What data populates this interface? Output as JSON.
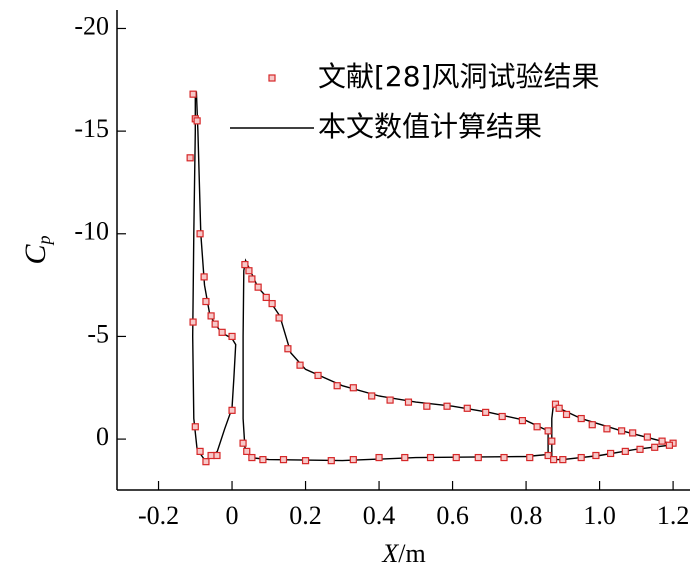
{
  "chart_data": {
    "type": "scatter",
    "x_label": "X/m",
    "y_label": "Cp",
    "xlim": [
      -0.313,
      1.246
    ],
    "ylim": [
      2.48,
      -20.9
    ],
    "xticks": [
      -0.2,
      0,
      0.2,
      0.4,
      0.6,
      0.8,
      {
        "value": 1,
        "label": "1.0"
      },
      1.2
    ],
    "yticks": [
      -20,
      -15,
      -10,
      -5,
      0
    ],
    "legend": "upper right",
    "series": [
      {
        "name": "文献[28]风洞试验结果",
        "type": "scatter",
        "color": "#d62728",
        "x": [
          -0.106,
          -0.1,
          -0.095,
          -0.114,
          -0.087,
          -0.076,
          -0.071,
          -0.057,
          -0.046,
          -0.027,
          0,
          -0.106,
          -0.1,
          -0.087,
          -0.071,
          -0.057,
          -0.041,
          0,
          0.035,
          0.046,
          0.054,
          0.071,
          0.093,
          0.109,
          0.128,
          0.152,
          0.185,
          0.234,
          0.286,
          0.33,
          0.38,
          0.43,
          0.48,
          0.53,
          0.585,
          0.64,
          0.69,
          0.735,
          0.79,
          0.83,
          0.86,
          0.87,
          0.03,
          0.04,
          0.054,
          0.084,
          0.14,
          0.2,
          0.27,
          0.33,
          0.4,
          0.47,
          0.54,
          0.61,
          0.67,
          0.74,
          0.81,
          0.86,
          0.88,
          0.89,
          0.91,
          0.95,
          0.98,
          1.02,
          1.06,
          1.09,
          1.13,
          1.17,
          1.2,
          0.875,
          0.9,
          0.95,
          0.99,
          1.03,
          1.07,
          1.11,
          1.15,
          1.19
        ],
        "values": [
          -16.8,
          -15.6,
          -15.5,
          -13.7,
          -10.0,
          -7.9,
          -6.7,
          -6.0,
          -5.6,
          -5.2,
          -5.0,
          -5.7,
          -0.6,
          0.6,
          1.1,
          0.8,
          0.8,
          -1.4,
          -8.5,
          -8.2,
          -7.8,
          -7.4,
          -6.9,
          -6.6,
          -5.9,
          -4.4,
          -3.6,
          -3.1,
          -2.6,
          -2.5,
          -2.1,
          -1.9,
          -1.8,
          -1.6,
          -1.6,
          -1.5,
          -1.3,
          -1.1,
          -0.9,
          -0.6,
          -0.4,
          0.1,
          0.2,
          0.6,
          0.9,
          1.0,
          1.0,
          1.05,
          1.05,
          1.0,
          0.9,
          0.9,
          0.9,
          0.9,
          0.9,
          0.9,
          0.9,
          0.8,
          -1.7,
          -1.5,
          -1.2,
          -1.0,
          -0.7,
          -0.5,
          -0.4,
          -0.3,
          -0.1,
          0.1,
          0.2,
          1.0,
          1.0,
          0.9,
          0.8,
          0.7,
          0.6,
          0.5,
          0.4,
          0.3
        ]
      },
      {
        "name": "本文数值计算结果",
        "type": "line",
        "color": "#000000",
        "x": [
          0,
          -0.03,
          -0.06,
          -0.075,
          -0.085,
          -0.093,
          -0.097,
          -0.1,
          -0.1,
          -0.104,
          -0.107,
          -0.104,
          -0.095,
          -0.075,
          -0.06,
          -0.04,
          -0.02,
          0,
          0.005,
          0.01,
          0,
          null,
          0.86,
          0.8,
          0.7,
          0.6,
          0.5,
          0.4,
          0.3,
          0.2,
          0.16,
          0.13,
          0.1,
          0.07,
          0.05,
          0.037,
          0.032,
          0.03,
          0.03,
          0.035,
          0.05,
          0.1,
          0.3,
          0.5,
          0.8,
          0.86,
          0.86,
          null,
          0.87,
          0.87,
          0.875,
          0.89,
          0.95,
          1.05,
          1.19,
          1.19,
          1.1,
          1.0,
          0.9,
          0.87
        ],
        "values": [
          -4.9,
          -5.2,
          -6.0,
          -7.5,
          -10,
          -15,
          -16.9,
          -16.9,
          -15,
          -10,
          -5,
          -1,
          0.5,
          1.0,
          0.9,
          0.6,
          -0.5,
          -1.5,
          -3,
          -4.6,
          -4.9,
          null,
          -0.4,
          -0.9,
          -1.3,
          -1.6,
          -1.8,
          -2.1,
          -2.6,
          -3.4,
          -4.2,
          -6,
          -6.8,
          -7.4,
          -8.2,
          -8.7,
          -8.2,
          -5,
          -1,
          0.4,
          0.9,
          1.0,
          1.05,
          0.9,
          0.85,
          0.75,
          -0.4,
          null,
          1.0,
          -1.0,
          -1.75,
          -1.5,
          -1.0,
          -0.45,
          0.2,
          0.3,
          0.5,
          0.8,
          1.0,
          1.0
        ]
      }
    ]
  }
}
